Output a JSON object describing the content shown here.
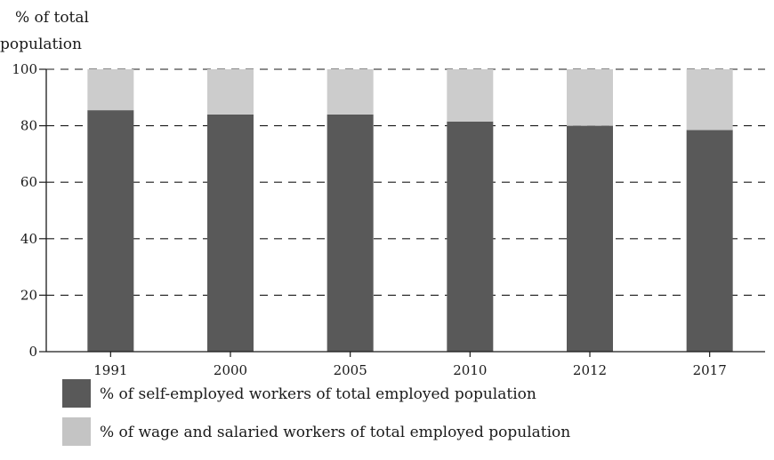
{
  "chart_data": {
    "type": "bar",
    "stacked": true,
    "title": "",
    "ylabel": [
      "% of total",
      "population"
    ],
    "xlabel": "",
    "ylim": [
      0,
      100
    ],
    "yticks": [
      "0",
      "20",
      "40",
      "60",
      "80",
      "100"
    ],
    "grid": "dashed horizontal",
    "categories": [
      "1991",
      "2000",
      "2005",
      "2010",
      "2012",
      "2017"
    ],
    "series": [
      {
        "name": "% of self-employed workers of total employed population",
        "color": "#595959",
        "values": [
          85.5,
          84,
          84,
          81.5,
          80,
          78.5
        ]
      },
      {
        "name": "% of wage and salaried workers of total employed population",
        "color": "#cccccc",
        "values": [
          14.5,
          16,
          16,
          18.5,
          20,
          21.5
        ]
      }
    ],
    "legend_position": "bottom"
  }
}
